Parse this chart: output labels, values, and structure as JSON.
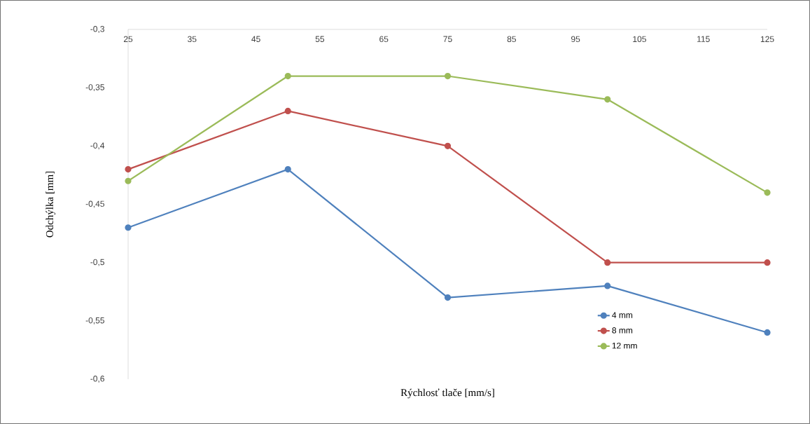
{
  "chart_data": {
    "type": "line",
    "xlabel": "Rýchlosť tlače [mm/s]",
    "ylabel": "Odchýlka [mm]",
    "x": [
      25,
      50,
      75,
      100,
      125
    ],
    "series": [
      {
        "name": "4 mm",
        "color": "#4f81bd",
        "values": [
          -0.47,
          -0.42,
          -0.53,
          -0.52,
          -0.56
        ]
      },
      {
        "name": "8 mm",
        "color": "#c0504d",
        "values": [
          -0.42,
          -0.37,
          -0.4,
          -0.5,
          -0.5
        ]
      },
      {
        "name": "12 mm",
        "color": "#9bbb59",
        "values": [
          -0.43,
          -0.34,
          -0.34,
          -0.36,
          -0.44
        ]
      }
    ],
    "xlim": [
      25,
      125
    ],
    "xticks": [
      25,
      35,
      45,
      55,
      65,
      75,
      85,
      95,
      105,
      115,
      125
    ],
    "ylim": [
      -0.6,
      -0.3
    ],
    "yticks": [
      {
        "value": -0.6,
        "label": "-0,6"
      },
      {
        "value": -0.55,
        "label": "-0,55"
      },
      {
        "value": -0.5,
        "label": "-0,5"
      },
      {
        "value": -0.45,
        "label": "-0,45"
      },
      {
        "value": -0.4,
        "label": "-0,4"
      },
      {
        "value": -0.35,
        "label": "-0,35"
      },
      {
        "value": -0.3,
        "label": "-0,3"
      }
    ],
    "grid": false,
    "legend": "bottom right",
    "marker": "circle",
    "line_style": "solid"
  }
}
